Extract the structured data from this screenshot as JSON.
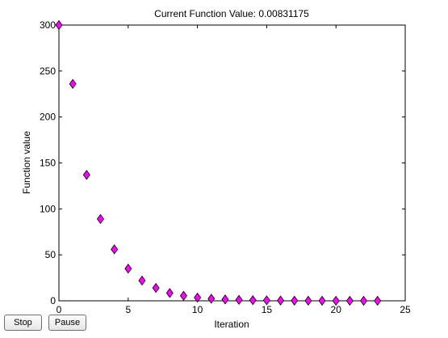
{
  "chart_data": {
    "type": "scatter",
    "title": "Current Function Value: 0.00831175",
    "xlabel": "Iteration",
    "ylabel": "Function value",
    "xlim": [
      0,
      25
    ],
    "ylim": [
      0,
      300
    ],
    "xticks": [
      0,
      5,
      10,
      15,
      20,
      25
    ],
    "yticks": [
      0,
      50,
      100,
      150,
      200,
      250,
      300
    ],
    "grid": false,
    "marker": "diamond",
    "marker_color": "#ff00ff",
    "x": [
      0,
      1,
      2,
      3,
      4,
      5,
      6,
      7,
      8,
      9,
      10,
      11,
      12,
      13,
      14,
      15,
      16,
      17,
      18,
      19,
      20,
      21,
      22,
      23
    ],
    "y": [
      300,
      236,
      137,
      89,
      56,
      35,
      22,
      14,
      8.5,
      5.5,
      3.5,
      2.3,
      1.5,
      1,
      0.7,
      0.5,
      0.3,
      0.2,
      0.15,
      0.1,
      0.05,
      0.03,
      0.02,
      0.008
    ]
  },
  "controls": {
    "stop_label": "Stop",
    "pause_label": "Pause"
  }
}
